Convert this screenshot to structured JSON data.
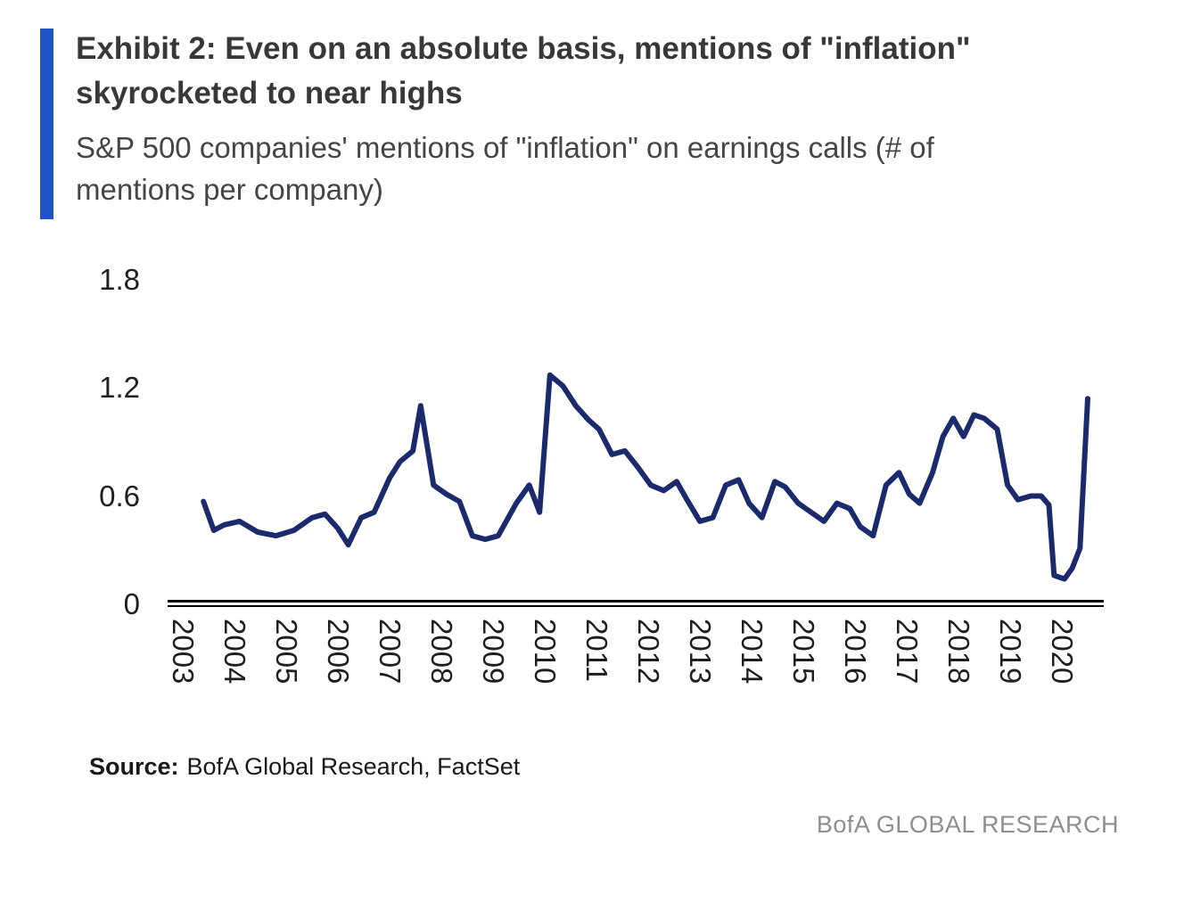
{
  "header": {
    "title_lines": [
      "Exhibit 2: Even on an absolute basis, mentions of \"inflation\"",
      "skyrocketed to near highs"
    ],
    "subtitle_lines": [
      "S&P 500 companies' mentions of \"inflation\" on earnings calls (# of",
      "mentions per company)"
    ]
  },
  "footer": {
    "source_label": "Source:",
    "source_text": "BofA Global Research, FactSet",
    "brand": "BofA GLOBAL RESEARCH"
  },
  "colors": {
    "accent_bar": "#1d55c4",
    "line": "#1a2a6c",
    "axis": "#000000",
    "tick_text": "#1f1f1f",
    "title_text": "#383838",
    "subtitle_text": "#454545",
    "source_text": "#1a1a1a",
    "brand_text": "#8e8e8e"
  },
  "chart_data": {
    "type": "line",
    "title": "S&P 500 companies' mentions of \"inflation\" on earnings calls (# of mentions per company)",
    "xlabel": "",
    "ylabel": "",
    "legend": "none",
    "grid": false,
    "frequency": "quarterly",
    "xlim": [
      2003,
      2021
    ],
    "ylim": [
      0,
      1.8
    ],
    "x_ticks": [
      2003,
      2004,
      2005,
      2006,
      2007,
      2008,
      2009,
      2010,
      2011,
      2012,
      2013,
      2014,
      2015,
      2016,
      2017,
      2018,
      2019,
      2020
    ],
    "y_ticks": [
      0,
      0.6,
      1.2,
      1.8
    ],
    "series_name": "Mentions of \"inflation\" per company",
    "points": [
      [
        2003.4,
        0.57
      ],
      [
        2003.6,
        0.41
      ],
      [
        2003.8,
        0.44
      ],
      [
        2004.1,
        0.46
      ],
      [
        2004.45,
        0.4
      ],
      [
        2004.8,
        0.38
      ],
      [
        2005.15,
        0.41
      ],
      [
        2005.5,
        0.48
      ],
      [
        2005.75,
        0.5
      ],
      [
        2006.0,
        0.42
      ],
      [
        2006.2,
        0.33
      ],
      [
        2006.45,
        0.48
      ],
      [
        2006.7,
        0.51
      ],
      [
        2007.0,
        0.7
      ],
      [
        2007.2,
        0.79
      ],
      [
        2007.45,
        0.85
      ],
      [
        2007.6,
        1.1
      ],
      [
        2007.85,
        0.66
      ],
      [
        2008.1,
        0.61
      ],
      [
        2008.35,
        0.57
      ],
      [
        2008.6,
        0.38
      ],
      [
        2008.85,
        0.36
      ],
      [
        2009.1,
        0.38
      ],
      [
        2009.45,
        0.56
      ],
      [
        2009.7,
        0.66
      ],
      [
        2009.9,
        0.51
      ],
      [
        2010.1,
        1.27
      ],
      [
        2010.35,
        1.21
      ],
      [
        2010.6,
        1.1
      ],
      [
        2010.85,
        1.02
      ],
      [
        2011.05,
        0.97
      ],
      [
        2011.3,
        0.83
      ],
      [
        2011.55,
        0.85
      ],
      [
        2011.8,
        0.76
      ],
      [
        2012.05,
        0.66
      ],
      [
        2012.3,
        0.63
      ],
      [
        2012.55,
        0.68
      ],
      [
        2012.75,
        0.58
      ],
      [
        2013.0,
        0.46
      ],
      [
        2013.25,
        0.48
      ],
      [
        2013.5,
        0.66
      ],
      [
        2013.75,
        0.69
      ],
      [
        2013.95,
        0.56
      ],
      [
        2014.2,
        0.48
      ],
      [
        2014.45,
        0.68
      ],
      [
        2014.65,
        0.65
      ],
      [
        2014.9,
        0.56
      ],
      [
        2015.15,
        0.51
      ],
      [
        2015.4,
        0.46
      ],
      [
        2015.65,
        0.56
      ],
      [
        2015.9,
        0.53
      ],
      [
        2016.1,
        0.43
      ],
      [
        2016.35,
        0.38
      ],
      [
        2016.6,
        0.66
      ],
      [
        2016.85,
        0.73
      ],
      [
        2017.05,
        0.61
      ],
      [
        2017.25,
        0.56
      ],
      [
        2017.5,
        0.73
      ],
      [
        2017.7,
        0.93
      ],
      [
        2017.9,
        1.03
      ],
      [
        2018.1,
        0.93
      ],
      [
        2018.3,
        1.05
      ],
      [
        2018.5,
        1.03
      ],
      [
        2018.75,
        0.97
      ],
      [
        2018.95,
        0.66
      ],
      [
        2019.15,
        0.58
      ],
      [
        2019.4,
        0.6
      ],
      [
        2019.6,
        0.6
      ],
      [
        2019.75,
        0.55
      ],
      [
        2019.85,
        0.16
      ],
      [
        2020.05,
        0.14
      ],
      [
        2020.2,
        0.2
      ],
      [
        2020.35,
        0.31
      ],
      [
        2020.5,
        1.14
      ]
    ]
  }
}
